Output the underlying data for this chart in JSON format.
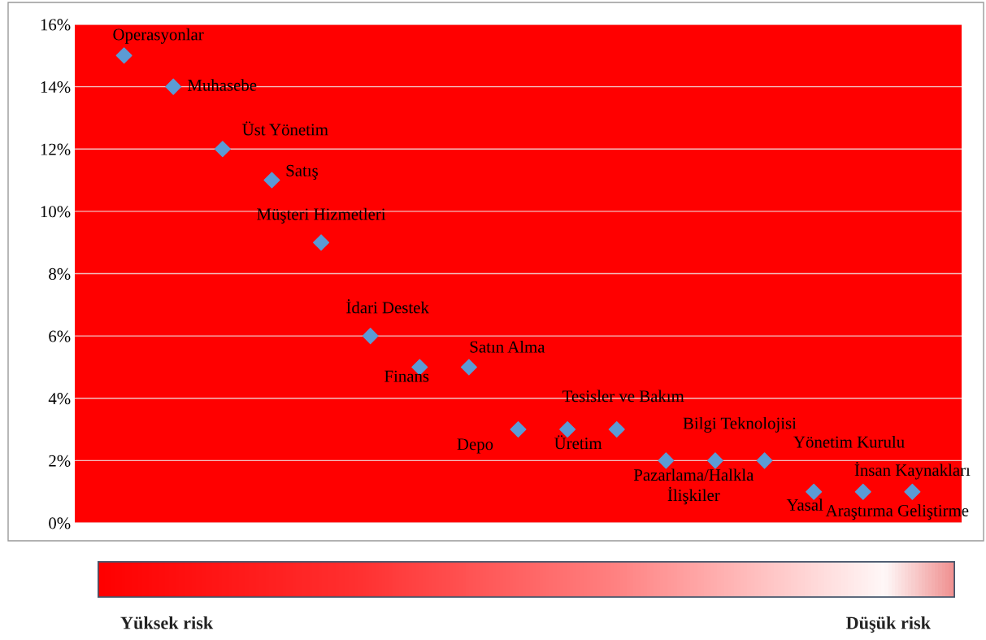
{
  "chart_data": {
    "type": "scatter",
    "categories": [
      null,
      null,
      null,
      null,
      null,
      null,
      null,
      null,
      null,
      null,
      null,
      null,
      null,
      null,
      null,
      null,
      null
    ],
    "series": [
      {
        "color": "#5b9bd5",
        "values": [
          15,
          14,
          12,
          11,
          9,
          6,
          5,
          5,
          3,
          3,
          3,
          2,
          2,
          2,
          1,
          1,
          1
        ],
        "value_labels": [
          "Operasyonlar",
          "Muhasebe",
          "Üst Yönetim",
          "Satış",
          "Müşteri Hizmetleri",
          "İdari Destek",
          "Finans",
          "Satın Alma",
          "Depo",
          "Üretim",
          "Tesisler ve Bakım",
          "Pazarlama/Halkla\nİlişkiler",
          "Bilgi Teknolojisi",
          "Yönetim Kurulu",
          "Yasal",
          "Araştırma Geliştirme",
          "İnsan Kaynakları"
        ]
      }
    ],
    "ylim": [
      0,
      16
    ],
    "yticks": [
      {
        "value": 0,
        "label": "0%"
      },
      {
        "value": 2,
        "label": "2%"
      },
      {
        "value": 4,
        "label": "4%"
      },
      {
        "value": 6,
        "label": "6%"
      },
      {
        "value": 8,
        "label": "8%"
      },
      {
        "value": 10,
        "label": "10%"
      },
      {
        "value": 12,
        "label": "12%"
      },
      {
        "value": 14,
        "label": "14%"
      },
      {
        "value": 16,
        "label": "16%"
      }
    ],
    "grid": "y",
    "marker": "diamond",
    "tick_labels": "y",
    "annotations": [
      "Yüksek risk",
      "Düşük risk"
    ]
  }
}
